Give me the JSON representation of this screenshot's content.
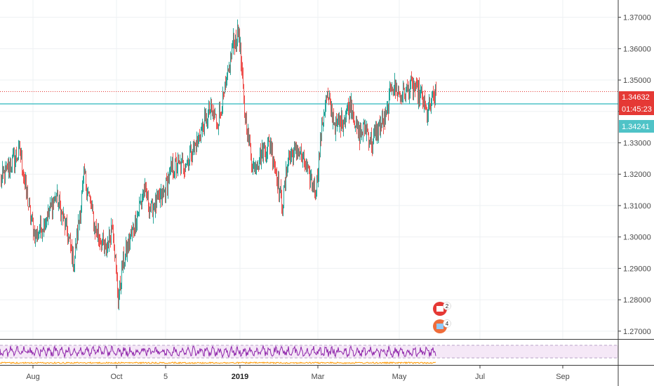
{
  "chart_data": {
    "type": "candlestick",
    "y_axis": {
      "ticks": [
        "1.37000",
        "1.36000",
        "1.35000",
        "1.34000",
        "1.33000",
        "1.32000",
        "1.31000",
        "1.30000",
        "1.29000",
        "1.28000",
        "1.27000"
      ],
      "ylim": [
        1.2675,
        1.3755
      ],
      "position": "right"
    },
    "x_axis": {
      "ticks": [
        {
          "label": "Aug",
          "bold": false
        },
        {
          "label": "Oct",
          "bold": false
        },
        {
          "label": "5",
          "bold": false
        },
        {
          "label": "2019",
          "bold": true
        },
        {
          "label": "Mar",
          "bold": false
        },
        {
          "label": "May",
          "bold": false
        },
        {
          "label": "Jul",
          "bold": false
        },
        {
          "label": "Sep",
          "bold": false
        }
      ]
    },
    "grid": true,
    "series_anchors": [
      [
        0,
        1.318
      ],
      [
        15,
        1.323
      ],
      [
        28,
        1.327
      ],
      [
        40,
        1.31
      ],
      [
        50,
        1.3
      ],
      [
        65,
        1.306
      ],
      [
        80,
        1.313
      ],
      [
        92,
        1.304
      ],
      [
        105,
        1.292
      ],
      [
        112,
        1.305
      ],
      [
        120,
        1.32
      ],
      [
        135,
        1.303
      ],
      [
        150,
        1.295
      ],
      [
        160,
        1.305
      ],
      [
        168,
        1.28
      ],
      [
        175,
        1.292
      ],
      [
        190,
        1.303
      ],
      [
        205,
        1.315
      ],
      [
        215,
        1.309
      ],
      [
        232,
        1.313
      ],
      [
        245,
        1.322
      ],
      [
        262,
        1.323
      ],
      [
        280,
        1.33
      ],
      [
        298,
        1.34
      ],
      [
        310,
        1.337
      ],
      [
        322,
        1.348
      ],
      [
        332,
        1.362
      ],
      [
        340,
        1.365
      ],
      [
        348,
        1.34
      ],
      [
        360,
        1.322
      ],
      [
        375,
        1.327
      ],
      [
        385,
        1.33
      ],
      [
        395,
        1.318
      ],
      [
        402,
        1.31
      ],
      [
        410,
        1.325
      ],
      [
        425,
        1.328
      ],
      [
        438,
        1.32
      ],
      [
        450,
        1.315
      ],
      [
        458,
        1.335
      ],
      [
        465,
        1.345
      ],
      [
        478,
        1.335
      ],
      [
        490,
        1.338
      ],
      [
        500,
        1.343
      ],
      [
        510,
        1.332
      ],
      [
        520,
        1.335
      ],
      [
        530,
        1.33
      ],
      [
        540,
        1.335
      ],
      [
        550,
        1.338
      ],
      [
        558,
        1.349
      ],
      [
        570,
        1.345
      ],
      [
        585,
        1.348
      ],
      [
        600,
        1.345
      ],
      [
        608,
        1.339
      ],
      [
        615,
        1.343
      ],
      [
        621,
        1.3463
      ]
    ],
    "current_price_label": "1.34632",
    "countdown_label": "01:45:23",
    "horizontal_line_label": "1.34241",
    "horizontal_line_price": 1.3424,
    "up_color": "#26a69a",
    "down_color": "#ef5350",
    "price_line_color": "#e53935",
    "hline_color": "#4fc3c7",
    "oscillator": {
      "line_color": "#8e24aa",
      "band_color": "#e1bee7",
      "baseline_color": "#ff9800"
    },
    "events": [
      {
        "icon": "canada-flag-icon",
        "count": "2"
      },
      {
        "icon": "uk-flag-icon",
        "count": "4"
      }
    ]
  }
}
